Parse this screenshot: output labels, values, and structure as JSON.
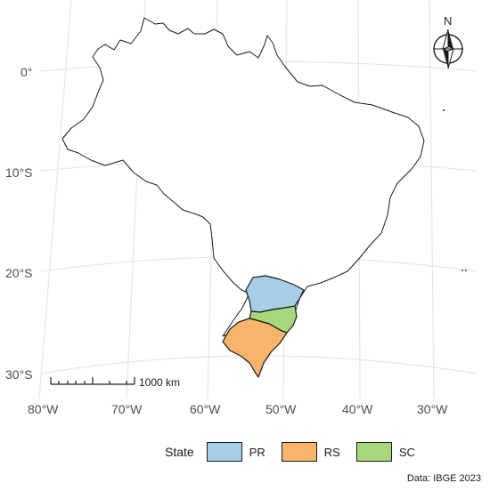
{
  "map": {
    "lat_labels": [
      "0°",
      "10°S",
      "20°S",
      "30°S"
    ],
    "lon_labels": [
      "80°W",
      "70°W",
      "60°W",
      "50°W",
      "40°W",
      "30°W"
    ],
    "north_arrow_label": "N",
    "scale_bar_label": "1000 km"
  },
  "legend": {
    "title": "State",
    "items": [
      {
        "label": "PR",
        "color": "#A6CFE6"
      },
      {
        "label": "RS",
        "color": "#F8B46B"
      },
      {
        "label": "SC",
        "color": "#A6D87B"
      }
    ]
  },
  "caption": "Data: IBGE 2023"
}
